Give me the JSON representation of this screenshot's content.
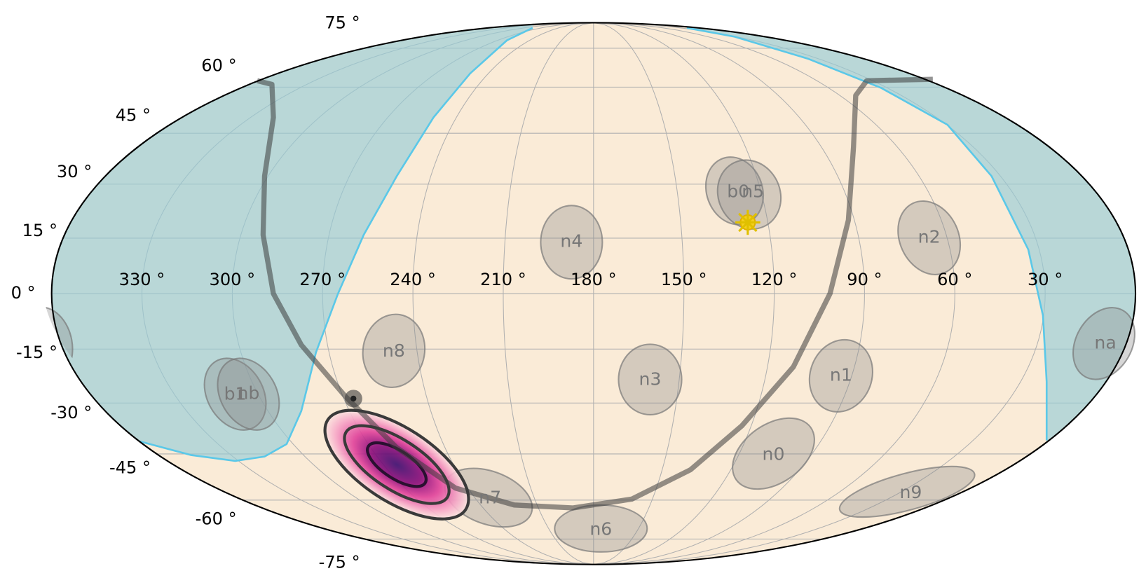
{
  "latitude_labels": [
    "75 °",
    "60 °",
    "45 °",
    "30 °",
    "15 °",
    "0 °",
    "-15 °",
    "-30 °",
    "-45 °",
    "-60 °",
    "-75 °"
  ],
  "longitude_labels": [
    "330 °",
    "300 °",
    "270 °",
    "240 °",
    "210 °",
    "180 °",
    "150 °",
    "120 °",
    "90 °",
    "60 °",
    "30 °"
  ],
  "detectors": [
    "n4",
    "b0",
    "n5",
    "n2",
    "na",
    "n8",
    "n3",
    "n1",
    "b1",
    "nb",
    "n0",
    "n7",
    "n9",
    "n6"
  ]
}
